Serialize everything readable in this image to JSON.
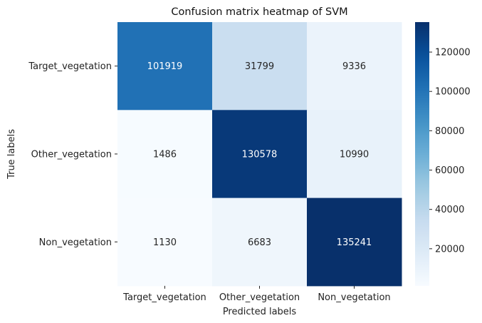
{
  "chart_data": {
    "type": "heatmap",
    "title": "Confusion matrix heatmap of SVM",
    "xlabel": "Predicted labels",
    "ylabel": "True labels",
    "x_categories": [
      "Target_vegetation",
      "Other_vegetation",
      "Non_vegetation"
    ],
    "y_categories": [
      "Target_vegetation",
      "Other_vegetation",
      "Non_vegetation"
    ],
    "values": [
      [
        101919,
        31799,
        9336
      ],
      [
        1486,
        130578,
        10990
      ],
      [
        1130,
        6683,
        135241
      ]
    ],
    "colormap": "Blues",
    "color_min": 1130,
    "color_max": 135241,
    "colorbar_ticks": [
      20000,
      40000,
      60000,
      80000,
      100000,
      120000
    ],
    "colorbar_tick_labels": [
      "20000",
      "40000",
      "60000",
      "80000",
      "100000",
      "120000"
    ],
    "colors": {
      "low": "#f7fbff",
      "high": "#08306b",
      "dark_text": "#262626",
      "light_text": "#ffffff"
    }
  }
}
